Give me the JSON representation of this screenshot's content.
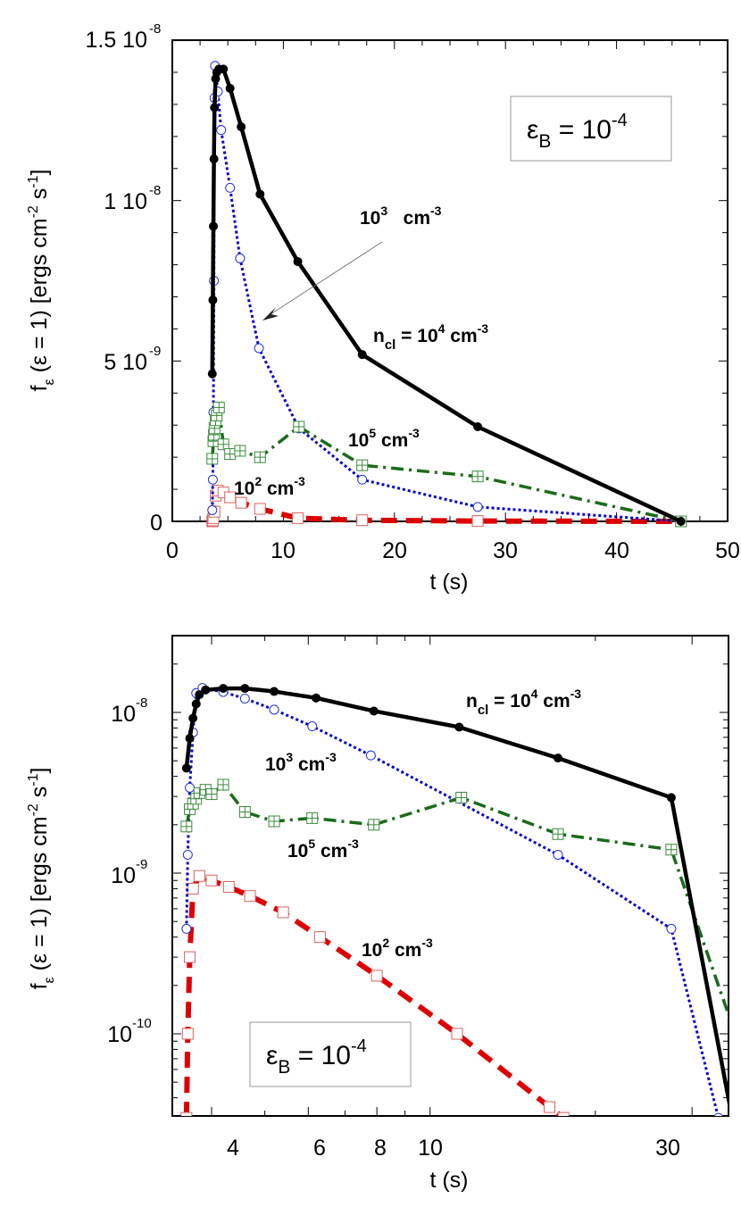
{
  "chart_data": [
    {
      "type": "line",
      "panel": "top",
      "scale": "linear",
      "title": "",
      "xlabel": "t (s)",
      "ylabel": "f_ε (ε = 1) [ergs cm^-2 s^-1]",
      "xlim": [
        0,
        50
      ],
      "ylim": [
        0,
        1.5e-08
      ],
      "x_ticks": [
        "0",
        "10",
        "20",
        "30",
        "40",
        "50"
      ],
      "y_ticks": [
        "0",
        "5 10^-9",
        "1 10^-8",
        "1.5 10^-8"
      ],
      "grid": false,
      "inset_box": "ε_B = 10^-4",
      "annotations": [
        "n_cl = 10^4 cm^-3",
        "10^3 cm^-3",
        "10^5 cm^-3",
        "10^2 cm^-3"
      ],
      "series": [
        {
          "name": "n_cl = 10^4 cm^-3",
          "color": "#000000",
          "style": "solid",
          "marker": "filled-circle",
          "x": [
            3.6,
            3.65,
            3.7,
            3.75,
            3.8,
            3.9,
            4.0,
            4.2,
            4.6,
            5.2,
            6.2,
            7.9,
            11.3,
            17.1,
            27.5,
            45.8
          ],
          "y": [
            4.6e-09,
            6.9e-09,
            9.2e-09,
            1.13e-08,
            1.29e-08,
            1.38e-08,
            1.4e-08,
            1.41e-08,
            1.41e-08,
            1.35e-08,
            1.23e-08,
            1.02e-08,
            8.1e-09,
            5.2e-09,
            2.95e-09,
            0.0
          ]
        },
        {
          "name": "10^3 cm^-3",
          "color": "#0000cc",
          "style": "dotted",
          "marker": "open-circle",
          "x": [
            3.6,
            3.65,
            3.7,
            3.75,
            3.8,
            3.85,
            4.1,
            4.4,
            5.2,
            6.1,
            7.8,
            11.4,
            17.1,
            27.5,
            45.8
          ],
          "y": [
            3.5e-10,
            1.3e-09,
            3.4e-09,
            7.5e-09,
            1.32e-08,
            1.42e-08,
            1.34e-08,
            1.22e-08,
            1.04e-08,
            8.2e-09,
            5.4e-09,
            2.9e-09,
            1.3e-09,
            4.5e-10,
            0.0
          ]
        },
        {
          "name": "10^5 cm^-3",
          "color": "#1a6b1a",
          "style": "dash-dot",
          "marker": "square-plus",
          "x": [
            3.6,
            3.7,
            3.75,
            3.8,
            3.9,
            4.0,
            4.2,
            4.6,
            5.2,
            6.1,
            7.9,
            11.4,
            17.1,
            27.5,
            45.8
          ],
          "y": [
            1.95e-09,
            2.5e-09,
            2.7e-09,
            2.9e-09,
            3.15e-09,
            3.3e-09,
            3.55e-09,
            2.4e-09,
            2.1e-09,
            2.2e-09,
            2e-09,
            2.95e-09,
            1.75e-09,
            1.4e-09,
            0.0
          ]
        },
        {
          "name": "10^2 cm^-3",
          "color": "#dd0000",
          "style": "dashed",
          "marker": "open-square",
          "x": [
            3.6,
            3.65,
            3.7,
            3.8,
            3.9,
            4.1,
            4.6,
            5.2,
            6.2,
            7.9,
            11.3,
            17.1,
            27.5,
            45.8
          ],
          "y": [
            0.0,
            3e-11,
            1e-10,
            3e-10,
            8e-10,
            9.6e-10,
            9e-10,
            7.5e-10,
            5.8e-10,
            3.9e-10,
            1e-10,
            3.5e-11,
            1e-11,
            0.0
          ]
        }
      ]
    },
    {
      "type": "line",
      "panel": "bottom",
      "scale": "log-log",
      "title": "",
      "xlabel": "t (s)",
      "ylabel": "f_ε (ε = 1) [ergs cm^-2 s^-1]",
      "xlim": [
        3,
        40
      ],
      "ylim": [
        3e-11,
        3e-08
      ],
      "x_ticks": [
        "4",
        "6",
        "8",
        "10",
        "30"
      ],
      "y_ticks": [
        "10^-10",
        "10^-9",
        "10^-8"
      ],
      "grid": false,
      "inset_box": "ε_B = 10^-4",
      "annotations": [
        "n_cl = 10^4 cm^-3",
        "10^3 cm^-3",
        "10^5 cm^-3",
        "10^2 cm^-3"
      ],
      "series": [
        {
          "name": "n_cl = 10^4 cm^-3",
          "color": "#000000",
          "style": "solid",
          "marker": "filled-circle",
          "x": [
            3.6,
            3.65,
            3.7,
            3.75,
            3.8,
            3.9,
            4.2,
            4.6,
            5.2,
            6.2,
            7.9,
            11.3,
            17.1,
            27.5,
            35.5
          ],
          "y": [
            4.5e-09,
            6.9e-09,
            9.2e-09,
            1.13e-08,
            1.29e-08,
            1.38e-08,
            1.41e-08,
            1.41e-08,
            1.35e-08,
            1.23e-08,
            1.02e-08,
            8.1e-09,
            5.2e-09,
            2.95e-09,
            3e-11
          ]
        },
        {
          "name": "10^3 cm^-3",
          "color": "#0000cc",
          "style": "dotted",
          "marker": "open-circle",
          "x": [
            3.6,
            3.62,
            3.65,
            3.7,
            3.75,
            3.85,
            4.2,
            4.6,
            5.2,
            6.1,
            7.8,
            17.1,
            27.5,
            33.5
          ],
          "y": [
            4.5e-10,
            1.3e-09,
            3.4e-09,
            7.5e-09,
            1.32e-08,
            1.42e-08,
            1.34e-08,
            1.22e-08,
            1.04e-08,
            8.2e-09,
            5.4e-09,
            1.3e-09,
            4.5e-10,
            3e-11
          ]
        },
        {
          "name": "10^5 cm^-3",
          "color": "#1a6b1a",
          "style": "dash-dot",
          "marker": "square-plus",
          "x": [
            3.6,
            3.65,
            3.7,
            3.75,
            3.8,
            3.9,
            4.0,
            4.2,
            4.6,
            5.2,
            6.1,
            7.9,
            11.4,
            17.1,
            27.5,
            40
          ],
          "y": [
            1.95e-09,
            2.5e-09,
            2.7e-09,
            2.9e-09,
            3.15e-09,
            3.3e-09,
            3.1e-09,
            3.55e-09,
            2.4e-09,
            2.1e-09,
            2.2e-09,
            2e-09,
            2.95e-09,
            1.75e-09,
            1.4e-09,
            3.5e-11
          ]
        },
        {
          "name": "10^2 cm^-3",
          "color": "#dd0000",
          "style": "dashed",
          "marker": "open-square",
          "x": [
            3.6,
            3.62,
            3.65,
            3.7,
            3.8,
            4.0,
            4.3,
            4.7,
            5.4,
            6.3,
            8.0,
            11.2,
            16.5,
            17.5
          ],
          "y": [
            3e-11,
            1e-10,
            3e-10,
            8e-10,
            9.6e-10,
            9e-10,
            8.2e-10,
            7.2e-10,
            5.7e-10,
            4e-10,
            2.3e-10,
            1e-10,
            3.5e-11,
            3e-11
          ]
        }
      ]
    }
  ],
  "labels": {
    "top": {
      "ytick_0": "0",
      "ytick_5": "5 10",
      "ytick_5_exp": "-9",
      "ytick_10": "1 10",
      "ytick_10_exp": "-8",
      "ytick_15": "1.5 10",
      "ytick_15_exp": "-8",
      "xticks": [
        "0",
        "10",
        "20",
        "30",
        "40",
        "50"
      ],
      "xlabel": "t (s)",
      "box_eps": "ε",
      "box_sub": "B",
      "box_eq": " = 10",
      "box_exp": "-4",
      "ann_1e4_n": "n",
      "ann_1e4_sub": "cl",
      "ann_1e4_main": " = 10",
      "ann_1e4_exp": "4",
      "ann_1e4_unit": " cm",
      "ann_1e4_uexp": "-3",
      "ann_1e3_main": "10",
      "ann_1e3_exp": "3",
      "ann_1e3_unit": "   cm",
      "ann_1e3_uexp": "-3",
      "ann_1e5_main": "10",
      "ann_1e5_exp": "5",
      "ann_1e5_unit": " cm",
      "ann_1e5_uexp": "-3",
      "ann_1e2_main": "10",
      "ann_1e2_exp": "2",
      "ann_1e2_unit": " cm",
      "ann_1e2_uexp": "-3"
    },
    "bottom": {
      "ytick_8": "10",
      "ytick_8_exp": "-8",
      "ytick_9": "10",
      "ytick_9_exp": "-9",
      "ytick_10": "10",
      "ytick_10_exp": "-10",
      "xticks": [
        "4",
        "6",
        "8",
        "10",
        "30"
      ],
      "xlabel": "t (s)"
    },
    "ylabel_f": "f",
    "ylabel_sub": "ε",
    "ylabel_rest": " (ε = 1) [ergs cm",
    "ylabel_exp1": "-2",
    "ylabel_s": " s",
    "ylabel_exp2": "-1",
    "ylabel_end": "]"
  }
}
